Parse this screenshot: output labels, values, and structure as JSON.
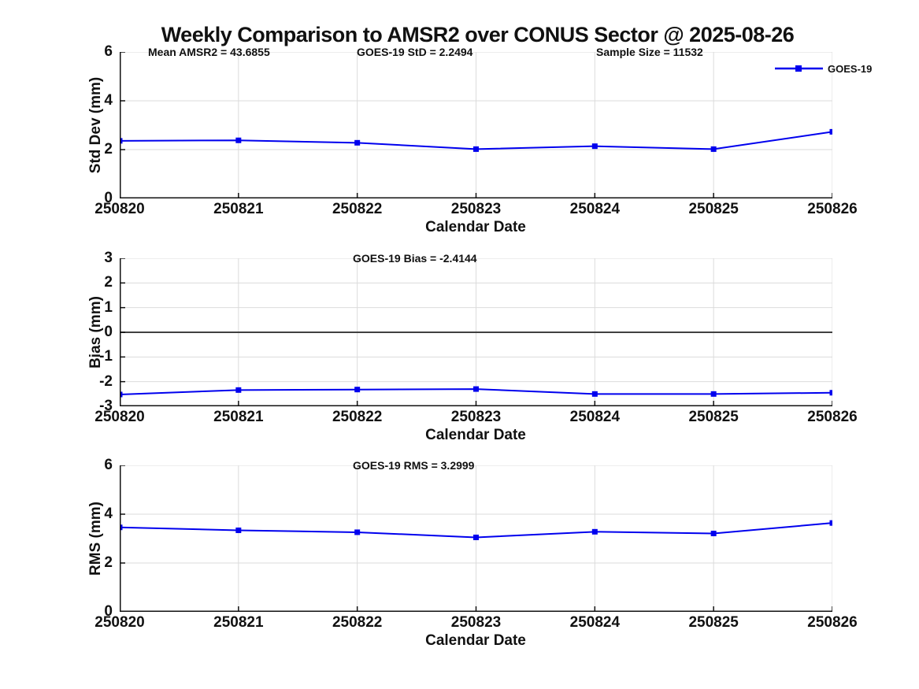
{
  "title": "Weekly Comparison to AMSR2 over CONUS Sector @ 2025-08-26",
  "legend": {
    "label": "GOES-19"
  },
  "colors": {
    "line": "#0000EE",
    "grid": "#DBDBDB",
    "zero_line": "#404040",
    "axis": "#111111",
    "text": "#111111",
    "background": "#FFFFFF"
  },
  "x_axis": {
    "label": "Calendar Date",
    "tick_labels": [
      "250820",
      "250821",
      "250822",
      "250823",
      "250824",
      "250825",
      "250826"
    ]
  },
  "chart_data": [
    {
      "type": "line",
      "name": "std-dev-chart",
      "series_name": "GOES-19",
      "ylabel": "Std Dev (mm)",
      "ylim": [
        0,
        6
      ],
      "yticks": [
        0,
        2,
        4,
        6
      ],
      "ytick_labels": [
        "0",
        "2",
        "4",
        "6"
      ],
      "categories": [
        "250820",
        "250821",
        "250822",
        "250823",
        "250824",
        "250825",
        "250826"
      ],
      "values": [
        2.36,
        2.38,
        2.28,
        2.02,
        2.14,
        2.02,
        2.73
      ],
      "grid": true,
      "zero_line": false,
      "annotations": [
        "Mean AMSR2 = 43.6855",
        "GOES-19 StD = 2.2494",
        "Sample Size = 11532"
      ],
      "xlabel": "Calendar Date"
    },
    {
      "type": "line",
      "name": "bias-chart",
      "series_name": "GOES-19",
      "ylabel": "Bias (mm)",
      "ylim": [
        -3,
        3
      ],
      "yticks": [
        -3,
        -2,
        -1,
        0,
        1,
        2,
        3
      ],
      "ytick_labels": [
        "-3",
        "-2",
        "-1",
        "0",
        "1",
        "2",
        "3"
      ],
      "categories": [
        "250820",
        "250821",
        "250822",
        "250823",
        "250824",
        "250825",
        "250826"
      ],
      "values": [
        -2.52,
        -2.34,
        -2.32,
        -2.3,
        -2.5,
        -2.5,
        -2.45
      ],
      "grid": true,
      "zero_line": true,
      "annotations": [
        "GOES-19 Bias  = -2.4144"
      ],
      "xlabel": "Calendar Date"
    },
    {
      "type": "line",
      "name": "rms-chart",
      "series_name": "GOES-19",
      "ylabel": "RMS (mm)",
      "ylim": [
        0,
        6
      ],
      "yticks": [
        0,
        2,
        4,
        6
      ],
      "ytick_labels": [
        "0",
        "2",
        "4",
        "6"
      ],
      "categories": [
        "250820",
        "250821",
        "250822",
        "250823",
        "250824",
        "250825",
        "250826"
      ],
      "values": [
        3.46,
        3.34,
        3.26,
        3.05,
        3.28,
        3.21,
        3.64
      ],
      "grid": true,
      "zero_line": false,
      "annotations": [
        "GOES-19 RMS = 3.2999"
      ],
      "xlabel": "Calendar Date"
    }
  ]
}
